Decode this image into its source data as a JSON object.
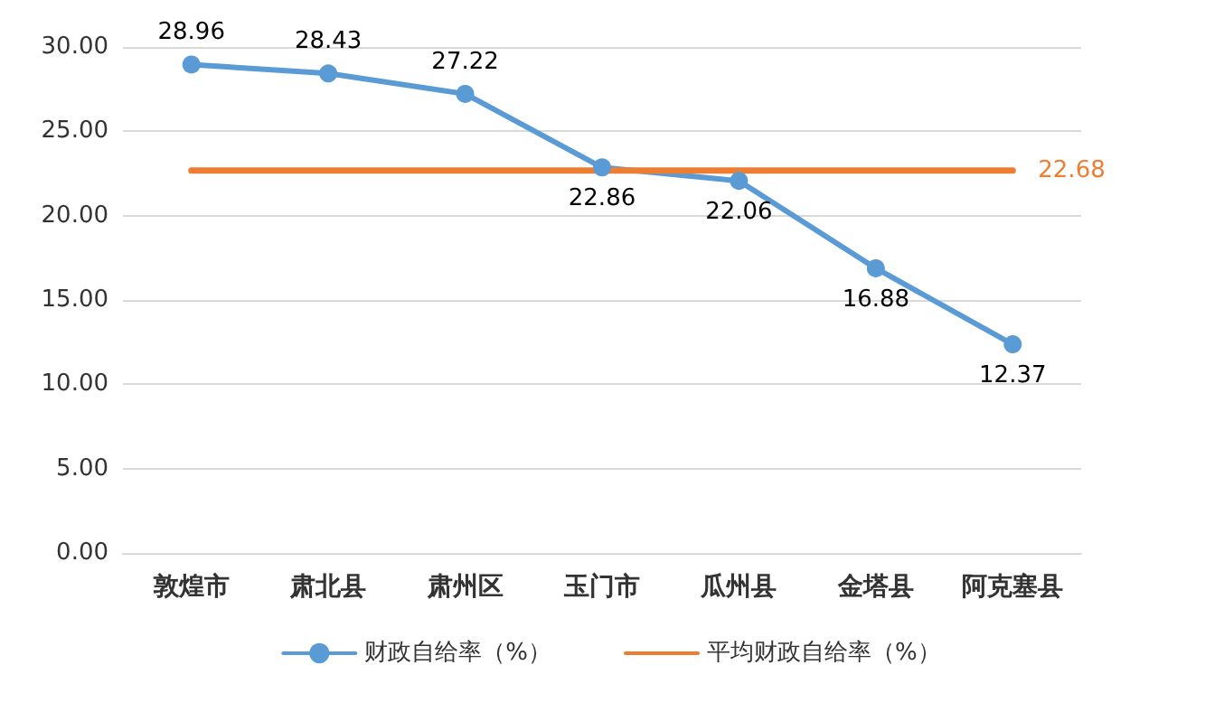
{
  "chart_data": {
    "type": "line",
    "categories": [
      "敦煌市",
      "肃北县",
      "肃州区",
      "玉门市",
      "瓜州县",
      "金塔县",
      "阿克塞县"
    ],
    "series": [
      {
        "name": "财政自给率（%）",
        "color": "#5b9bd5",
        "marker": "circle",
        "values": [
          28.96,
          28.43,
          27.22,
          22.86,
          22.06,
          16.88,
          12.37
        ],
        "data_labels": true
      },
      {
        "name": "平均财政自给率（%）",
        "color": "#ed7d31",
        "marker": "none",
        "values": [
          22.68,
          22.68,
          22.68,
          22.68,
          22.68,
          22.68,
          22.68
        ],
        "value_labels": [
          null,
          null,
          null,
          null,
          null,
          null,
          "22.68"
        ]
      }
    ],
    "ylim": [
      0,
      30
    ],
    "yticks": [
      {
        "value": 0,
        "label": "0.00"
      },
      {
        "value": 5,
        "label": "5.00"
      },
      {
        "value": 10,
        "label": "10.00"
      },
      {
        "value": 15,
        "label": "15.00"
      },
      {
        "value": 20,
        "label": "20.00"
      },
      {
        "value": 25,
        "label": "25.00"
      },
      {
        "value": 30,
        "label": "30.00"
      }
    ],
    "grid": "y",
    "legend": "bottom",
    "line_style": "solid"
  }
}
